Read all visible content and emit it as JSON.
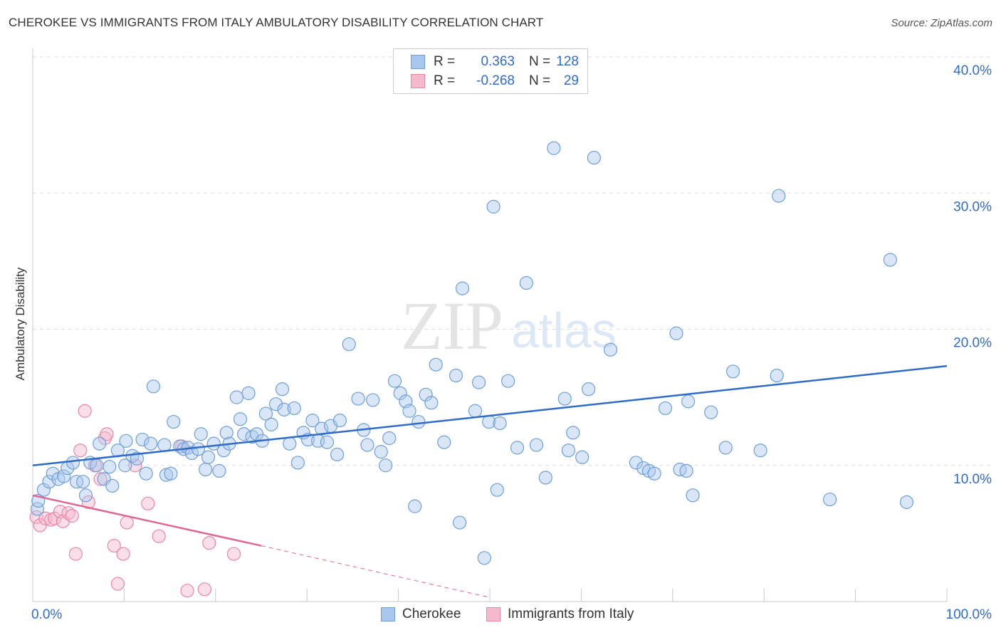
{
  "header": {
    "title": "CHEROKEE VS IMMIGRANTS FROM ITALY AMBULATORY DISABILITY CORRELATION CHART",
    "source": "Source: ZipAtlas.com"
  },
  "legend": {
    "rows": [
      {
        "r_label": "R =",
        "r_value": "0.363",
        "n_label": "N =",
        "n_value": "128"
      },
      {
        "r_label": "R =",
        "r_value": "-0.268",
        "n_label": "N =",
        "n_value": "29"
      }
    ]
  },
  "watermark": {
    "zip": "ZIP",
    "atlas": "atlas"
  },
  "colors": {
    "cherokee_fill": "#a9c7ee",
    "cherokee_stroke": "#6f9fd8",
    "cherokee_line": "#2f6cc9",
    "italy_fill": "#f6b8cb",
    "italy_stroke": "#e987a6",
    "italy_line": "#e06794",
    "grid": "#dddddd",
    "axis_label": "#2f6cc9"
  },
  "chart_data": {
    "type": "scatter",
    "title": "CHEROKEE VS IMMIGRANTS FROM ITALY AMBULATORY DISABILITY CORRELATION CHART",
    "xlabel": "",
    "ylabel": "Ambulatory Disability",
    "xlim": [
      0,
      100
    ],
    "ylim": [
      0,
      40
    ],
    "x_tick_labels": [
      "0.0%",
      "100.0%"
    ],
    "y_ticks": [
      10,
      20,
      30,
      40
    ],
    "y_tick_labels": [
      "10.0%",
      "20.0%",
      "30.0%",
      "40.0%"
    ],
    "grid": true,
    "legend_position": "bottom-center",
    "series": [
      {
        "name": "Cherokee",
        "r": 0.363,
        "n": 128,
        "trend": {
          "x": [
            0,
            100
          ],
          "y": [
            10.0,
            17.3
          ]
        },
        "points": [
          [
            0.5,
            6.8
          ],
          [
            0.6,
            7.4
          ],
          [
            1.2,
            8.2
          ],
          [
            1.8,
            8.8
          ],
          [
            2.2,
            9.4
          ],
          [
            2.8,
            9.0
          ],
          [
            3.4,
            9.2
          ],
          [
            3.8,
            9.8
          ],
          [
            4.4,
            10.2
          ],
          [
            4.8,
            8.8
          ],
          [
            5.5,
            8.8
          ],
          [
            5.8,
            7.8
          ],
          [
            6.3,
            10.2
          ],
          [
            7.0,
            10.0
          ],
          [
            7.3,
            11.6
          ],
          [
            7.8,
            9.0
          ],
          [
            8.4,
            9.9
          ],
          [
            8.7,
            8.5
          ],
          [
            9.3,
            11.1
          ],
          [
            10.1,
            10.0
          ],
          [
            10.2,
            11.8
          ],
          [
            10.9,
            10.7
          ],
          [
            11.4,
            10.5
          ],
          [
            12.0,
            11.9
          ],
          [
            12.4,
            9.4
          ],
          [
            12.9,
            11.6
          ],
          [
            13.2,
            15.8
          ],
          [
            14.4,
            11.5
          ],
          [
            14.6,
            9.3
          ],
          [
            15.1,
            9.4
          ],
          [
            15.4,
            13.2
          ],
          [
            16.1,
            11.4
          ],
          [
            16.5,
            11.2
          ],
          [
            17.0,
            11.3
          ],
          [
            17.4,
            10.9
          ],
          [
            18.1,
            11.2
          ],
          [
            18.4,
            12.3
          ],
          [
            18.9,
            9.7
          ],
          [
            19.2,
            10.6
          ],
          [
            19.8,
            11.6
          ],
          [
            20.4,
            9.6
          ],
          [
            20.9,
            11.1
          ],
          [
            21.2,
            12.4
          ],
          [
            21.5,
            11.6
          ],
          [
            22.3,
            15.0
          ],
          [
            22.7,
            13.4
          ],
          [
            23.1,
            12.3
          ],
          [
            23.6,
            15.3
          ],
          [
            24.0,
            12.1
          ],
          [
            24.5,
            12.3
          ],
          [
            25.1,
            11.8
          ],
          [
            25.5,
            13.8
          ],
          [
            26.1,
            13.0
          ],
          [
            26.6,
            14.5
          ],
          [
            27.3,
            15.6
          ],
          [
            27.5,
            14.1
          ],
          [
            28.1,
            11.6
          ],
          [
            28.6,
            14.2
          ],
          [
            29.0,
            10.2
          ],
          [
            29.6,
            12.4
          ],
          [
            30.1,
            11.9
          ],
          [
            30.6,
            13.3
          ],
          [
            31.2,
            11.8
          ],
          [
            31.6,
            12.7
          ],
          [
            32.2,
            11.7
          ],
          [
            32.6,
            12.9
          ],
          [
            33.3,
            10.8
          ],
          [
            33.6,
            13.3
          ],
          [
            34.6,
            18.9
          ],
          [
            35.6,
            14.9
          ],
          [
            36.2,
            12.6
          ],
          [
            36.6,
            11.5
          ],
          [
            37.2,
            14.8
          ],
          [
            38.1,
            11.0
          ],
          [
            38.6,
            10.0
          ],
          [
            39.0,
            12.0
          ],
          [
            39.6,
            16.2
          ],
          [
            40.2,
            15.3
          ],
          [
            40.8,
            14.7
          ],
          [
            41.2,
            14.0
          ],
          [
            41.8,
            7.0
          ],
          [
            42.2,
            13.2
          ],
          [
            43.0,
            15.2
          ],
          [
            43.6,
            14.6
          ],
          [
            44.1,
            17.4
          ],
          [
            45.0,
            11.7
          ],
          [
            46.3,
            16.6
          ],
          [
            46.7,
            5.8
          ],
          [
            47.0,
            23.0
          ],
          [
            48.4,
            14.0
          ],
          [
            48.8,
            16.1
          ],
          [
            49.4,
            3.2
          ],
          [
            49.9,
            13.2
          ],
          [
            50.4,
            29.0
          ],
          [
            50.8,
            8.2
          ],
          [
            51.1,
            13.1
          ],
          [
            52.0,
            16.2
          ],
          [
            53.0,
            11.3
          ],
          [
            54.0,
            23.4
          ],
          [
            55.1,
            11.5
          ],
          [
            56.1,
            9.1
          ],
          [
            58.2,
            14.9
          ],
          [
            58.6,
            11.1
          ],
          [
            59.1,
            12.4
          ],
          [
            57.0,
            33.3
          ],
          [
            61.4,
            32.6
          ],
          [
            60.1,
            10.6
          ],
          [
            60.8,
            15.6
          ],
          [
            63.2,
            18.5
          ],
          [
            66.0,
            10.2
          ],
          [
            66.8,
            9.8
          ],
          [
            67.4,
            9.6
          ],
          [
            68.0,
            9.4
          ],
          [
            69.2,
            14.2
          ],
          [
            70.4,
            19.7
          ],
          [
            70.8,
            9.7
          ],
          [
            71.5,
            9.6
          ],
          [
            71.7,
            14.7
          ],
          [
            72.2,
            7.8
          ],
          [
            74.2,
            13.9
          ],
          [
            75.8,
            11.3
          ],
          [
            76.6,
            16.9
          ],
          [
            79.6,
            11.1
          ],
          [
            81.4,
            16.6
          ],
          [
            81.6,
            29.8
          ],
          [
            87.2,
            7.5
          ],
          [
            93.8,
            25.1
          ],
          [
            95.6,
            7.3
          ]
        ]
      },
      {
        "name": "Immigrants from Italy",
        "r": -0.268,
        "n": 29,
        "trend": {
          "x": [
            0,
            25
          ],
          "y": [
            7.8,
            4.1
          ]
        },
        "trend_extension": {
          "x": [
            25,
            50
          ],
          "y": [
            4.1,
            0.3
          ]
        },
        "points": [
          [
            0.4,
            6.2
          ],
          [
            0.8,
            5.6
          ],
          [
            1.4,
            6.1
          ],
          [
            2.0,
            6.0
          ],
          [
            2.4,
            6.1
          ],
          [
            3.0,
            6.6
          ],
          [
            3.3,
            5.9
          ],
          [
            3.9,
            6.5
          ],
          [
            4.3,
            6.3
          ],
          [
            4.7,
            3.5
          ],
          [
            5.2,
            11.1
          ],
          [
            5.7,
            14.0
          ],
          [
            6.1,
            7.3
          ],
          [
            6.8,
            10.0
          ],
          [
            7.4,
            9.0
          ],
          [
            7.9,
            12.0
          ],
          [
            8.1,
            12.3
          ],
          [
            8.9,
            4.1
          ],
          [
            9.3,
            1.3
          ],
          [
            9.9,
            3.5
          ],
          [
            10.3,
            5.8
          ],
          [
            11.2,
            10.0
          ],
          [
            12.6,
            7.2
          ],
          [
            13.8,
            4.8
          ],
          [
            16.3,
            11.4
          ],
          [
            16.9,
            0.8
          ],
          [
            18.8,
            0.9
          ],
          [
            19.3,
            4.3
          ],
          [
            22.0,
            3.5
          ]
        ]
      }
    ]
  }
}
